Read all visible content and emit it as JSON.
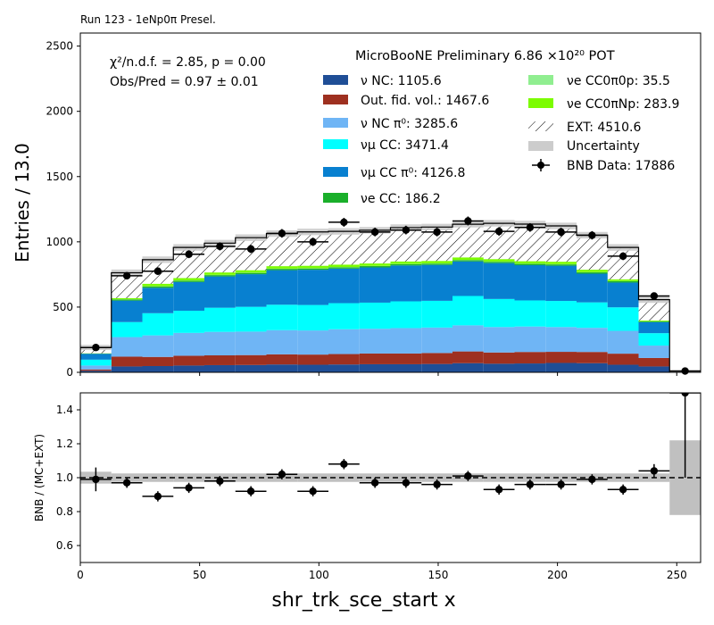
{
  "chart_data": [
    {
      "type": "bar",
      "panel": "top",
      "stacked": true,
      "title": "Run 123 - 1eNp0π Presel.",
      "header": "MicroBooNE Preliminary 6.86 ×10²⁰ POT",
      "ylabel": "Entries / 13.0",
      "xlabel": "",
      "xlim": [
        0,
        260
      ],
      "ylim": [
        0,
        2600
      ],
      "yticks": [
        "0",
        "500",
        "1000",
        "1500",
        "2000",
        "2500"
      ],
      "bin_edges": [
        0,
        13,
        26,
        39,
        52,
        65,
        78,
        91,
        104,
        117,
        130,
        143,
        156,
        169,
        182,
        195,
        208,
        221,
        234,
        247,
        260
      ],
      "stats": {
        "chi2": "χ²/n.d.f. = 2.85, p = 0.00",
        "ratio": "Obs/Pred = 0.97 ± 0.01"
      },
      "series": [
        {
          "name": "ν NC: 1105.6",
          "color": "#1f4e96",
          "values": [
            12,
            45,
            48,
            52,
            55,
            56,
            60,
            58,
            60,
            62,
            62,
            64,
            70,
            66,
            68,
            72,
            70,
            58,
            45,
            0
          ]
        },
        {
          "name": "Out. fid. vol.: 1467.6",
          "color": "#9e3020",
          "values": [
            10,
            75,
            70,
            75,
            75,
            76,
            78,
            78,
            80,
            82,
            82,
            84,
            90,
            86,
            88,
            85,
            86,
            85,
            65,
            0
          ]
        },
        {
          "name": "ν NC π⁰: 3285.6",
          "color": "#6fb5f5",
          "values": [
            30,
            150,
            165,
            175,
            180,
            180,
            185,
            185,
            190,
            190,
            195,
            195,
            200,
            195,
            195,
            190,
            185,
            175,
            95,
            0
          ]
        },
        {
          "name": "νμ CC: 3471.4",
          "color": "#00ffff",
          "values": [
            45,
            115,
            170,
            170,
            185,
            190,
            195,
            195,
            200,
            200,
            205,
            205,
            225,
            215,
            200,
            200,
            195,
            180,
            95,
            0
          ]
        },
        {
          "name": "νμ CC π⁰: 4126.8",
          "color": "#0880d0",
          "values": [
            45,
            165,
            195,
            220,
            240,
            250,
            265,
            270,
            265,
            270,
            275,
            275,
            265,
            275,
            270,
            270,
            220,
            190,
            85,
            0
          ]
        },
        {
          "name": "νe CC: 186.2",
          "color": "#1aaf2a",
          "values": [
            2,
            8,
            10,
            10,
            10,
            10,
            10,
            10,
            10,
            10,
            10,
            10,
            10,
            10,
            10,
            10,
            10,
            10,
            5,
            0
          ]
        },
        {
          "name": "νe CC0π0p: 35.5",
          "color": "#90ee90",
          "values": [
            0.5,
            2,
            2,
            2,
            2,
            2,
            2,
            2,
            2,
            2,
            2,
            2,
            2,
            2,
            2,
            2,
            2,
            2,
            1,
            0
          ]
        },
        {
          "name": "νe CC0πNp: 283.9",
          "color": "#7cfc00",
          "values": [
            1,
            8,
            18,
            18,
            18,
            18,
            18,
            18,
            18,
            18,
            18,
            18,
            18,
            18,
            18,
            18,
            18,
            12,
            6,
            0
          ]
        },
        {
          "name": "EXT: 4510.6",
          "color": "#ffffff",
          "hatch": true,
          "values": [
            45,
            195,
            185,
            235,
            225,
            250,
            250,
            260,
            255,
            255,
            260,
            260,
            255,
            275,
            285,
            275,
            265,
            245,
            160,
            0
          ]
        }
      ],
      "uncertainty": {
        "name": "Uncertainty",
        "color": "#cccccc",
        "values": [
          20,
          25,
          25,
          25,
          25,
          25,
          25,
          25,
          25,
          25,
          25,
          25,
          25,
          25,
          25,
          25,
          25,
          25,
          25,
          10
        ]
      },
      "data_points": {
        "name": "BNB Data: 17886",
        "color": "#000000",
        "x": [
          6.5,
          19.5,
          32.5,
          45.5,
          58.5,
          71.5,
          84.5,
          97.5,
          110.5,
          123.5,
          136.5,
          149.5,
          162.5,
          175.5,
          188.5,
          201.5,
          214.5,
          227.5,
          240.5,
          253.5
        ],
        "y": [
          190,
          740,
          775,
          905,
          965,
          945,
          1065,
          1000,
          1150,
          1075,
          1090,
          1075,
          1160,
          1080,
          1110,
          1075,
          1050,
          890,
          585,
          10
        ],
        "yerr": [
          14,
          27,
          28,
          30,
          31,
          31,
          33,
          32,
          34,
          33,
          33,
          33,
          34,
          33,
          33,
          33,
          32,
          30,
          24,
          3
        ]
      },
      "legend_position": "upper right"
    },
    {
      "type": "scatter",
      "panel": "ratio",
      "ylabel": "BNB / (MC+EXT)",
      "xlabel": "shr_trk_sce_start x",
      "xlim": [
        0,
        260
      ],
      "ylim": [
        0.5,
        1.5
      ],
      "xticks": [
        "0",
        "50",
        "100",
        "150",
        "200",
        "250"
      ],
      "yticks": [
        "0.6",
        "0.8",
        "1.0",
        "1.2",
        "1.4"
      ],
      "reference_line": 1.0,
      "x": [
        6.5,
        19.5,
        32.5,
        45.5,
        58.5,
        71.5,
        84.5,
        97.5,
        110.5,
        123.5,
        136.5,
        149.5,
        162.5,
        175.5,
        188.5,
        201.5,
        214.5,
        227.5,
        240.5,
        253.5
      ],
      "y": [
        0.99,
        0.97,
        0.89,
        0.94,
        0.98,
        0.92,
        1.02,
        0.92,
        1.08,
        0.97,
        0.97,
        0.96,
        1.01,
        0.93,
        0.96,
        0.96,
        0.99,
        0.93,
        1.04,
        1.5
      ],
      "yerr": [
        0.07,
        0.03,
        0.03,
        0.03,
        0.03,
        0.03,
        0.03,
        0.03,
        0.03,
        0.03,
        0.03,
        0.03,
        0.03,
        0.03,
        0.03,
        0.03,
        0.03,
        0.03,
        0.04,
        0.5
      ],
      "uncertainty_band": [
        0.035,
        0.025,
        0.025,
        0.025,
        0.025,
        0.025,
        0.025,
        0.025,
        0.025,
        0.025,
        0.025,
        0.025,
        0.025,
        0.025,
        0.025,
        0.025,
        0.025,
        0.025,
        0.025,
        0.22
      ]
    }
  ]
}
